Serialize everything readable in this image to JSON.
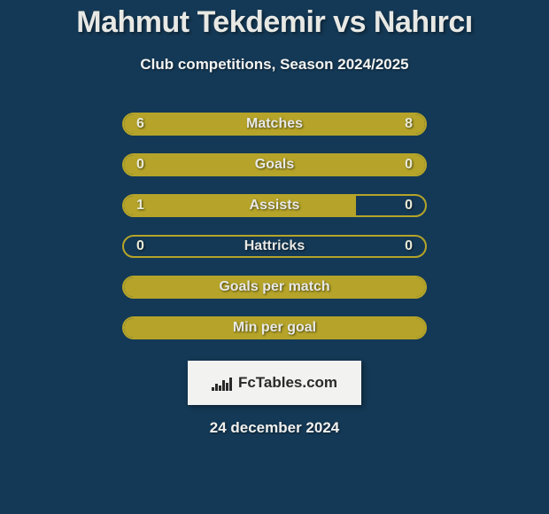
{
  "colors": {
    "background": "#143956",
    "title": "#e8e8e4",
    "subtitle": "#f4f4f2",
    "bar_border": "#b5a429",
    "bar_fill": "#b5a429",
    "bar_label": "#e8e9e6",
    "bar_value": "#eaead8",
    "oval": "#f2f2f0",
    "brand_bg": "#f2f2f1",
    "brand_text": "#2a2a2a",
    "date_text": "#f0f0ee"
  },
  "title": "Mahmut Tekdemir vs Nahırcı",
  "subtitle": "Club competitions, Season 2024/2025",
  "bar_track_width": 344,
  "bars": [
    {
      "label": "Matches",
      "left_value": "6",
      "right_value": "8",
      "left_raw": 6,
      "right_raw": 8,
      "left_fill_pct": 40,
      "right_fill_pct": 60,
      "show_ovals": true,
      "show_values": true
    },
    {
      "label": "Goals",
      "left_value": "0",
      "right_value": "0",
      "left_raw": 0,
      "right_raw": 0,
      "left_fill_pct": 100,
      "right_fill_pct": 0,
      "show_ovals": true,
      "show_values": true
    },
    {
      "label": "Assists",
      "left_value": "1",
      "right_value": "0",
      "left_raw": 1,
      "right_raw": 0,
      "left_fill_pct": 77,
      "right_fill_pct": 0,
      "show_ovals": false,
      "show_values": true
    },
    {
      "label": "Hattricks",
      "left_value": "0",
      "right_value": "0",
      "left_raw": 0,
      "right_raw": 0,
      "left_fill_pct": 0,
      "right_fill_pct": 0,
      "show_ovals": false,
      "show_values": true
    },
    {
      "label": "Goals per match",
      "left_value": "",
      "right_value": "",
      "left_raw": 0,
      "right_raw": 0,
      "left_fill_pct": 100,
      "right_fill_pct": 0,
      "show_ovals": false,
      "show_values": false
    },
    {
      "label": "Min per goal",
      "left_value": "",
      "right_value": "",
      "left_raw": 0,
      "right_raw": 0,
      "left_fill_pct": 100,
      "right_fill_pct": 0,
      "show_ovals": false,
      "show_values": false
    }
  ],
  "brand": {
    "text": "FcTables.com",
    "icon_bar_heights": [
      4,
      8,
      6,
      12,
      9,
      15
    ],
    "icon_bar_color": "#2a2a2a"
  },
  "date": "24 december 2024"
}
